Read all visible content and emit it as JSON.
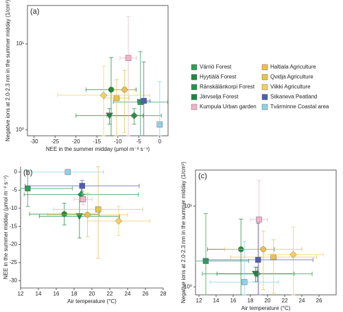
{
  "chart_data": [
    {
      "type": "scatter",
      "title": "(a)",
      "x_label": "NEE in the summer midday (μmol m⁻² s⁻¹)",
      "y_label": "Negative ions at 2.0-2.3 nm in the summer midday (1/cm³)",
      "xlim": [
        -31.6,
        2
      ],
      "xticks": [
        -30,
        -25,
        -20,
        -15,
        -10,
        -5,
        0
      ],
      "ylim": [
        0.85,
        28
      ],
      "ylog": true,
      "yticks": [
        {
          "value": 1,
          "label": "10⁰"
        },
        {
          "value": 10,
          "label": "10¹"
        }
      ],
      "frame": true,
      "legend": "right",
      "series": [
        {
          "name": "Värriö Forest",
          "color": "#2e9e57",
          "marker": "square",
          "x": -4.6,
          "y": 2.1,
          "xerr": 6.5,
          "yerr": 6
        },
        {
          "name": "Hyytiälä Forest",
          "color": "#1c8a3c",
          "marker": "circle",
          "x": -11.6,
          "y": 2.93,
          "xerr": 6,
          "yerr": 4
        },
        {
          "name": "Ränskälänkorpi Forest",
          "color": "#23954a",
          "marker": "diamond",
          "x": -6.1,
          "y": 1.46,
          "xerr": 6.5,
          "yerr": 0.3
        },
        {
          "name": "Järvselja Forest",
          "color": "#178a42",
          "marker": "triangle",
          "x": -12,
          "y": 1.46,
          "xerr": 8,
          "yerr": 0.3
        },
        {
          "name": "Kumpula Urban garden",
          "color": "#f2b3c6",
          "marker": "square",
          "x": -7.5,
          "y": 6.85,
          "xerr": 2,
          "yerr": 14
        },
        {
          "name": "Haltiala Agriculture",
          "color": "#eec04a",
          "marker": "square",
          "x": -10.3,
          "y": 2.34,
          "xerr": 3,
          "yerr": 1.5
        },
        {
          "name": "Qvidja Agriculture",
          "color": "#e6c24e",
          "marker": "circle",
          "x": -8.4,
          "y": 2.93,
          "xerr": 2.5,
          "yerr": 2
        },
        {
          "name": "Viikki Agriculture",
          "color": "#f0d065",
          "marker": "diamond",
          "x": -13.4,
          "y": 2.52,
          "xerr": 11,
          "yerr": 3
        },
        {
          "name": "Siikaneva Peatland",
          "color": "#4f5fae",
          "marker": "square",
          "x": -3.8,
          "y": 2.17,
          "xerr": 1.5,
          "yerr": 4
        },
        {
          "name": "Tvärminne Coastal area",
          "color": "#8fd1e6",
          "marker": "square",
          "x": 0,
          "y": 1.15,
          "xerr": 0.3,
          "yerr": 2.5
        }
      ]
    },
    {
      "type": "scatter",
      "title": "(b)",
      "x_label": "Air temperature (°C)",
      "y_label": "NEE in the summer midday (μmol m⁻² s⁻¹)",
      "xlim": [
        12,
        28
      ],
      "xticks": [
        12,
        14,
        16,
        18,
        20,
        22,
        24,
        26,
        28
      ],
      "ylim": [
        -32,
        1.5
      ],
      "yticks": [
        0,
        -5,
        -10,
        -15,
        -20,
        -25,
        -30
      ],
      "frame": false,
      "series": [
        {
          "color": "#2e9e57",
          "marker": "square",
          "x": 12.8,
          "y": -4.5,
          "xerr": 5,
          "yerr": 5
        },
        {
          "color": "#1c8a3c",
          "marker": "circle",
          "x": 16.9,
          "y": -11.6,
          "xerr": 3.9,
          "yerr": 3
        },
        {
          "color": "#23954a",
          "marker": "diamond",
          "x": 18.8,
          "y": -6.2,
          "xerr": 6.4,
          "yerr": 2
        },
        {
          "color": "#178a42",
          "marker": "triangle",
          "x": 18.6,
          "y": -12.2,
          "xerr": 4.5,
          "yerr": 6
        },
        {
          "color": "#f2b3c6",
          "marker": "square",
          "x": 19,
          "y": -7.5,
          "xerr": 1,
          "yerr": 1.5
        },
        {
          "color": "#eec04a",
          "marker": "square",
          "x": 20.7,
          "y": -10.3,
          "xerr": 5,
          "yerr": 13.5
        },
        {
          "color": "#e6c24e",
          "marker": "circle",
          "x": 19.5,
          "y": -11.8,
          "xerr": 4.5,
          "yerr": 6
        },
        {
          "color": "#f0d065",
          "marker": "diamond",
          "x": 23,
          "y": -13.5,
          "xerr": 3.5,
          "yerr": 4
        },
        {
          "color": "#4f5fae",
          "marker": "square",
          "x": 18.9,
          "y": -3.8,
          "xerr": 6.4,
          "yerr": 1.5
        },
        {
          "color": "#8fd1e6",
          "marker": "square",
          "x": 17.3,
          "y": 0,
          "xerr": 4,
          "yerr": 0.4
        }
      ]
    },
    {
      "type": "scatter",
      "title": "(c)",
      "x_label": "Air temperature (°C)",
      "y_label": "Negative ions at 2.0-2.3 nm in the summer midday (1/cm³)",
      "xlim": [
        11.6,
        28
      ],
      "xticks": [
        12,
        14,
        16,
        18,
        20,
        22,
        24,
        26
      ],
      "ylim": [
        0.8,
        28
      ],
      "ylog": true,
      "yticks": [
        {
          "value": 1,
          "label": "10⁰"
        },
        {
          "value": 10,
          "label": "10¹"
        }
      ],
      "frame": true,
      "series": [
        {
          "color": "#2e9e57",
          "marker": "square",
          "x": 12.8,
          "y": 2.1,
          "xerr": 5,
          "yerr": 6
        },
        {
          "color": "#1c8a3c",
          "marker": "circle",
          "x": 16.9,
          "y": 2.93,
          "xerr": 3.9,
          "yerr": 4
        },
        {
          "color": "#23954a",
          "marker": "diamond",
          "x": 18.8,
          "y": 1.46,
          "xerr": 6.4,
          "yerr": 0.3
        },
        {
          "color": "#178a42",
          "marker": "triangle",
          "x": 18.6,
          "y": 1.46,
          "xerr": 4.5,
          "yerr": 0.3
        },
        {
          "color": "#f2b3c6",
          "marker": "square",
          "x": 19,
          "y": 6.85,
          "xerr": 1,
          "yerr": 14
        },
        {
          "color": "#eec04a",
          "marker": "square",
          "x": 20.7,
          "y": 2.34,
          "xerr": 5,
          "yerr": 1.5
        },
        {
          "color": "#e6c24e",
          "marker": "circle",
          "x": 19.5,
          "y": 2.93,
          "xerr": 4.5,
          "yerr": 2
        },
        {
          "color": "#f0d065",
          "marker": "diamond",
          "x": 23,
          "y": 2.52,
          "xerr": 3.5,
          "yerr": 3
        },
        {
          "color": "#4f5fae",
          "marker": "square",
          "x": 18.9,
          "y": 2.17,
          "xerr": 6.4,
          "yerr": 4
        },
        {
          "color": "#8fd1e6",
          "marker": "square",
          "x": 17.3,
          "y": 1.15,
          "xerr": 4,
          "yerr": 2.5
        }
      ]
    }
  ]
}
